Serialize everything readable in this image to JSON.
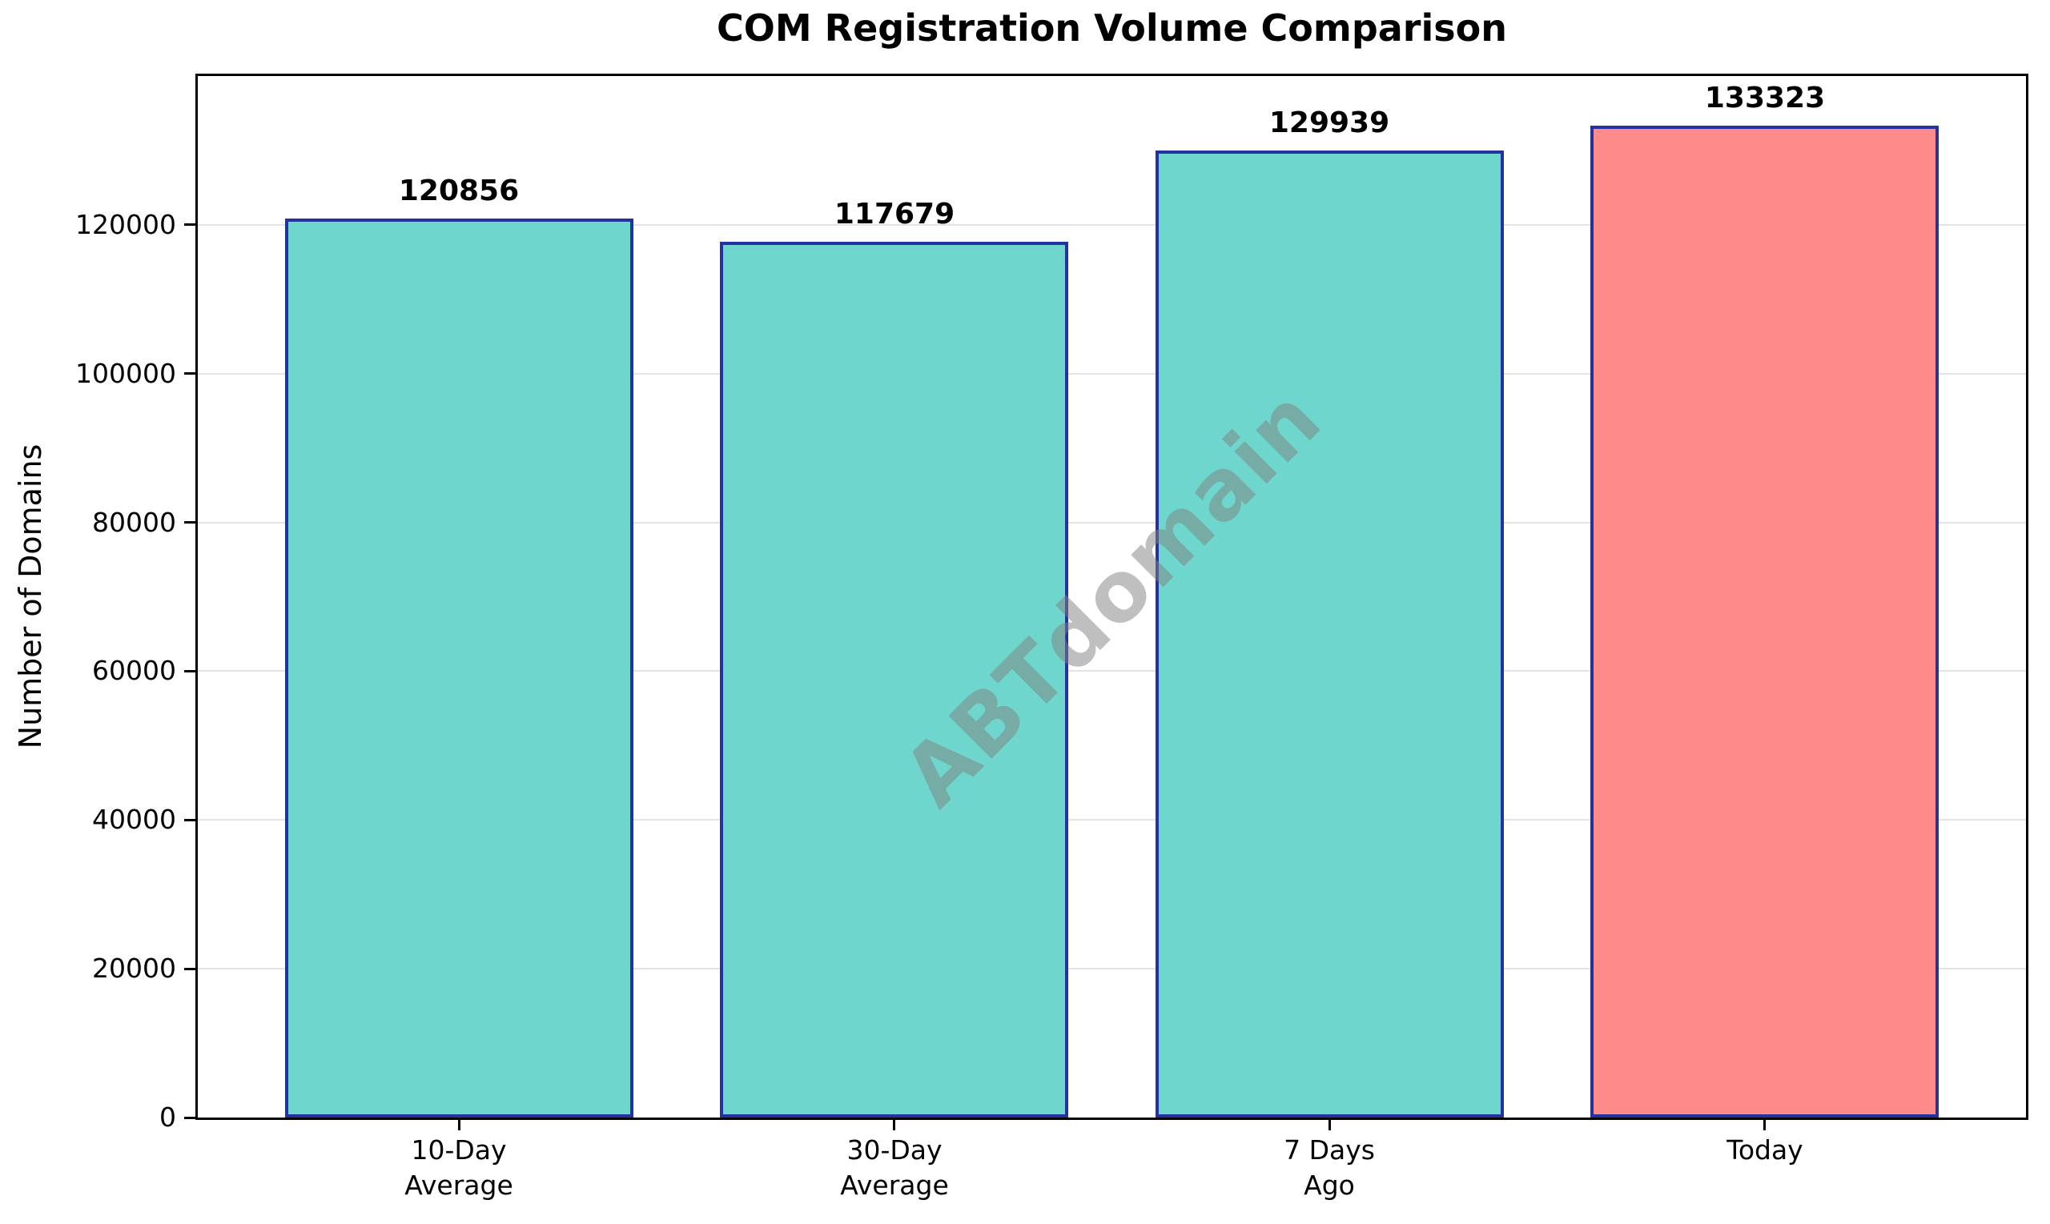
{
  "chart_data": {
    "type": "bar",
    "title": "COM Registration Volume Comparison",
    "xlabel": "",
    "ylabel": "Number of Domains",
    "categories": [
      "10-Day\nAverage",
      "30-Day\nAverage",
      "7 Days\nAgo",
      "Today"
    ],
    "values": [
      120856,
      117679,
      129939,
      133323
    ],
    "value_labels": [
      "120856",
      "117679",
      "129939",
      "133323"
    ],
    "bar_colors": [
      "#6FD6CD",
      "#6FD6CD",
      "#6FD6CD",
      "#FF8A8A"
    ],
    "bar_edge_color": "#2432A0",
    "ylim": [
      0,
      140000
    ],
    "yticks": [
      0,
      20000,
      40000,
      60000,
      80000,
      100000,
      120000
    ],
    "grid": true,
    "gridline_color": "#E4E4E4",
    "legend": "none",
    "watermark": "ABTdomain"
  }
}
